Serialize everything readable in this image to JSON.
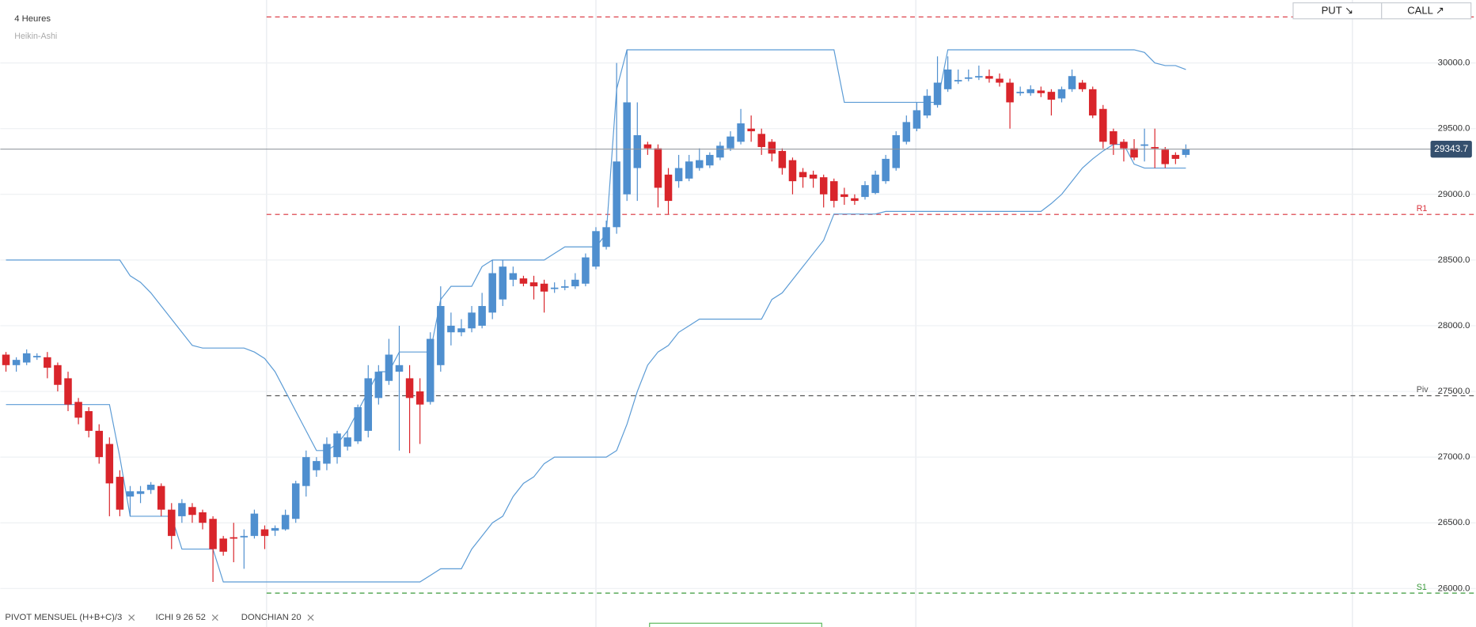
{
  "chart_data": {
    "type": "candlestick",
    "title": "4 Heures",
    "subtitle": "Heikin-Ashi",
    "buttons": [
      "PUT ↘",
      "CALL ↗"
    ],
    "indicators": [
      "PIVOT MENSUEL (H+B+C)/3",
      "ICHI 9 26 52",
      "DONCHIAN 20"
    ],
    "up_color": "#4f8fcf",
    "down_color": "#d9252b",
    "band_color": "#5b9bd5",
    "ylim": [
      25707,
      30479
    ],
    "yticks": [
      {
        "value": 26000,
        "label": "26000.0"
      },
      {
        "value": 26500,
        "label": "26500.0"
      },
      {
        "value": 27000,
        "label": "27000.0"
      },
      {
        "value": 27500,
        "label": "27500.0"
      },
      {
        "value": 28000,
        "label": "28000.0"
      },
      {
        "value": 28500,
        "label": "28500.0"
      },
      {
        "value": 29000,
        "label": "29000.0"
      },
      {
        "value": 29500,
        "label": "29500.0"
      },
      {
        "value": 30000,
        "label": "30000.0"
      }
    ],
    "grid": true,
    "last_price": 29343.7,
    "levels": [
      {
        "label": null,
        "value": 30350,
        "color": "#d9303a"
      },
      {
        "label": "R1",
        "value": 28847,
        "color": "#d9303a"
      },
      {
        "label": "Piv",
        "value": 27467,
        "color": "#555555"
      },
      {
        "label": "S1",
        "value": 25965,
        "color": "#3a9a3a"
      }
    ],
    "ohlc": [
      [
        27780,
        27800,
        27650,
        27700
      ],
      [
        27700,
        27760,
        27650,
        27740
      ],
      [
        27720,
        27820,
        27700,
        27790
      ],
      [
        27760,
        27790,
        27740,
        27770
      ],
      [
        27760,
        27800,
        27600,
        27680
      ],
      [
        27700,
        27720,
        27500,
        27550
      ],
      [
        27600,
        27650,
        27350,
        27400
      ],
      [
        27420,
        27450,
        27250,
        27300
      ],
      [
        27350,
        27380,
        27150,
        27200
      ],
      [
        27200,
        27250,
        26950,
        27000
      ],
      [
        27100,
        27150,
        26550,
        26800
      ],
      [
        26850,
        26900,
        26550,
        26600
      ],
      [
        26700,
        26780,
        26550,
        26740
      ],
      [
        26720,
        26780,
        26650,
        26740
      ],
      [
        26750,
        26810,
        26720,
        26790
      ],
      [
        26780,
        26800,
        26550,
        26600
      ],
      [
        26600,
        26650,
        26300,
        26400
      ],
      [
        26550,
        26680,
        26500,
        26650
      ],
      [
        26620,
        26650,
        26500,
        26560
      ],
      [
        26580,
        26600,
        26450,
        26500
      ],
      [
        26530,
        26550,
        26050,
        26300
      ],
      [
        26380,
        26400,
        26250,
        26280
      ],
      [
        26390,
        26500,
        26200,
        26380
      ],
      [
        26390,
        26450,
        26150,
        26400
      ],
      [
        26400,
        26600,
        26380,
        26570
      ],
      [
        26450,
        26480,
        26300,
        26400
      ],
      [
        26440,
        26480,
        26400,
        26460
      ],
      [
        26450,
        26600,
        26440,
        26560
      ],
      [
        26530,
        26820,
        26500,
        26800
      ],
      [
        26780,
        27050,
        26700,
        27000
      ],
      [
        26900,
        27000,
        26850,
        26970
      ],
      [
        26950,
        27150,
        26900,
        27100
      ],
      [
        27000,
        27200,
        26950,
        27180
      ],
      [
        27080,
        27200,
        27050,
        27150
      ],
      [
        27120,
        27400,
        27100,
        27380
      ],
      [
        27200,
        27700,
        27150,
        27600
      ],
      [
        27450,
        27700,
        27400,
        27650
      ],
      [
        27580,
        27900,
        27550,
        27780
      ],
      [
        27650,
        28000,
        27050,
        27700
      ],
      [
        27600,
        27700,
        27030,
        27450
      ],
      [
        27500,
        27600,
        27100,
        27400
      ],
      [
        27420,
        27950,
        27400,
        27900
      ],
      [
        27700,
        28300,
        27650,
        28150
      ],
      [
        27950,
        28100,
        27850,
        28000
      ],
      [
        27950,
        28050,
        27920,
        27980
      ],
      [
        27980,
        28150,
        27950,
        28100
      ],
      [
        28000,
        28250,
        27980,
        28150
      ],
      [
        28100,
        28500,
        28050,
        28400
      ],
      [
        28200,
        28500,
        28150,
        28450
      ],
      [
        28350,
        28450,
        28300,
        28400
      ],
      [
        28360,
        28380,
        28300,
        28320
      ],
      [
        28330,
        28380,
        28200,
        28300
      ],
      [
        28320,
        28350,
        28100,
        28260
      ],
      [
        28280,
        28330,
        28250,
        28290
      ],
      [
        28290,
        28350,
        28270,
        28300
      ],
      [
        28300,
        28400,
        28280,
        28350
      ],
      [
        28320,
        28550,
        28300,
        28520
      ],
      [
        28450,
        28750,
        28430,
        28720
      ],
      [
        28600,
        28800,
        28580,
        28750
      ],
      [
        28750,
        30000,
        28700,
        29250
      ],
      [
        29000,
        30100,
        28950,
        29700
      ],
      [
        29200,
        29700,
        28950,
        29450
      ],
      [
        29380,
        29400,
        29300,
        29350
      ],
      [
        29350,
        29380,
        28900,
        29050
      ],
      [
        29150,
        29200,
        28850,
        28950
      ],
      [
        29100,
        29300,
        29050,
        29200
      ],
      [
        29120,
        29300,
        29100,
        29250
      ],
      [
        29200,
        29350,
        29180,
        29260
      ],
      [
        29220,
        29320,
        29200,
        29300
      ],
      [
        29280,
        29400,
        29260,
        29370
      ],
      [
        29350,
        29480,
        29330,
        29440
      ],
      [
        29400,
        29650,
        29380,
        29540
      ],
      [
        29500,
        29600,
        29400,
        29480
      ],
      [
        29460,
        29500,
        29300,
        29360
      ],
      [
        29400,
        29420,
        29250,
        29310
      ],
      [
        29330,
        29350,
        29150,
        29200
      ],
      [
        29260,
        29280,
        29000,
        29100
      ],
      [
        29170,
        29200,
        29050,
        29130
      ],
      [
        29150,
        29180,
        29050,
        29120
      ],
      [
        29130,
        29150,
        28900,
        29000
      ],
      [
        29100,
        29120,
        28900,
        28950
      ],
      [
        29000,
        29050,
        28920,
        28980
      ],
      [
        28970,
        29000,
        28920,
        28950
      ],
      [
        28980,
        29100,
        28960,
        29070
      ],
      [
        29010,
        29180,
        29000,
        29150
      ],
      [
        29100,
        29300,
        29080,
        29270
      ],
      [
        29200,
        29480,
        29180,
        29450
      ],
      [
        29400,
        29600,
        29380,
        29550
      ],
      [
        29500,
        29700,
        29480,
        29640
      ],
      [
        29600,
        29800,
        29580,
        29750
      ],
      [
        29680,
        30050,
        29660,
        29850
      ],
      [
        29800,
        30050,
        29780,
        29950
      ],
      [
        29860,
        29950,
        29840,
        29870
      ],
      [
        29880,
        29950,
        29860,
        29890
      ],
      [
        29890,
        29980,
        29870,
        29900
      ],
      [
        29900,
        29950,
        29850,
        29880
      ],
      [
        29880,
        29920,
        29820,
        29850
      ],
      [
        29850,
        29880,
        29500,
        29700
      ],
      [
        29770,
        29820,
        29750,
        29780
      ],
      [
        29770,
        29830,
        29750,
        29800
      ],
      [
        29790,
        29820,
        29740,
        29770
      ],
      [
        29780,
        29800,
        29600,
        29720
      ],
      [
        29730,
        29820,
        29700,
        29800
      ],
      [
        29800,
        29950,
        29780,
        29900
      ],
      [
        29850,
        29870,
        29780,
        29800
      ],
      [
        29800,
        29820,
        29580,
        29600
      ],
      [
        29650,
        29680,
        29350,
        29400
      ],
      [
        29480,
        29500,
        29300,
        29380
      ],
      [
        29400,
        29420,
        29250,
        29350
      ],
      [
        29350,
        29420,
        29260,
        29280
      ],
      [
        29370,
        29500,
        29250,
        29380
      ],
      [
        29360,
        29500,
        29200,
        29350
      ],
      [
        29340,
        29360,
        29200,
        29230
      ],
      [
        29300,
        29320,
        29230,
        29270
      ],
      [
        29300,
        29380,
        29280,
        29343.7
      ]
    ],
    "donchian_upper": [
      28500,
      28500,
      28500,
      28500,
      28500,
      28500,
      28500,
      28500,
      28500,
      28500,
      28500,
      28500,
      28380,
      28330,
      28250,
      28150,
      28050,
      27950,
      27850,
      27830,
      27830,
      27830,
      27830,
      27830,
      27800,
      27750,
      27650,
      27500,
      27350,
      27200,
      27050,
      27050,
      27100,
      27200,
      27350,
      27500,
      27650,
      27650,
      27800,
      27800,
      27800,
      27800,
      28200,
      28300,
      28300,
      28300,
      28450,
      28500,
      28500,
      28500,
      28500,
      28500,
      28500,
      28550,
      28600,
      28600,
      28600,
      28600,
      28700,
      29800,
      30100,
      30100,
      30100,
      30100,
      30100,
      30100,
      30100,
      30100,
      30100,
      30100,
      30100,
      30100,
      30100,
      30100,
      30100,
      30100,
      30100,
      30100,
      30100,
      30100,
      30100,
      29700,
      29700,
      29700,
      29700,
      29700,
      29700,
      29700,
      29700,
      29700,
      29700,
      30100,
      30100,
      30100,
      30100,
      30100,
      30100,
      30100,
      30100,
      30100,
      30100,
      30100,
      30100,
      30100,
      30100,
      30100,
      30100,
      30100,
      30100,
      30100,
      30080,
      30000,
      29980,
      29980,
      29950
    ],
    "donchian_lower": [
      27400,
      27400,
      27400,
      27400,
      27400,
      27400,
      27400,
      27400,
      27400,
      27400,
      27400,
      27000,
      26550,
      26550,
      26550,
      26550,
      26550,
      26300,
      26300,
      26300,
      26300,
      26050,
      26050,
      26050,
      26050,
      26050,
      26050,
      26050,
      26050,
      26050,
      26050,
      26050,
      26050,
      26050,
      26050,
      26050,
      26050,
      26050,
      26050,
      26050,
      26050,
      26100,
      26150,
      26150,
      26150,
      26300,
      26400,
      26500,
      26550,
      26700,
      26800,
      26850,
      26950,
      27000,
      27000,
      27000,
      27000,
      27000,
      27000,
      27050,
      27250,
      27500,
      27700,
      27800,
      27850,
      27950,
      28000,
      28050,
      28050,
      28050,
      28050,
      28050,
      28050,
      28050,
      28200,
      28250,
      28350,
      28450,
      28550,
      28650,
      28850,
      28850,
      28850,
      28850,
      28850,
      28870,
      28870,
      28870,
      28870,
      28870,
      28870,
      28870,
      28870,
      28870,
      28870,
      28870,
      28870,
      28870,
      28870,
      28870,
      28870,
      28930,
      29000,
      29100,
      29200,
      29270,
      29330,
      29380,
      29380,
      29230,
      29200,
      29200,
      29200,
      29200,
      29200
    ]
  }
}
